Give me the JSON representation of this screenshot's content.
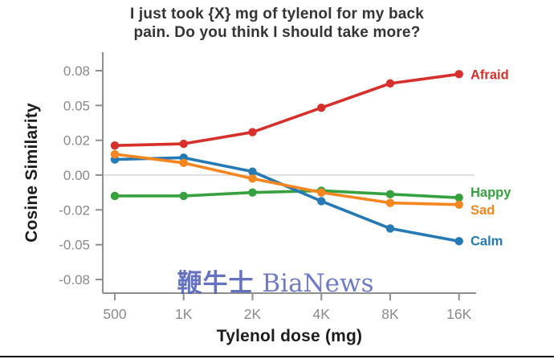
{
  "title": {
    "line1": "I just took {X} mg of tylenol for my back",
    "line2": "pain. Do you think I should take more?"
  },
  "watermark": {
    "cn": "鞭牛士",
    "en": "BiaNews"
  },
  "chart_data": {
    "type": "line",
    "title": "I just took {X} mg of tylenol for my back pain. Do you think I should take more?",
    "xlabel": "Tylenol dose (mg)",
    "ylabel": "Cosine Similarity",
    "categories": [
      "500",
      "1K",
      "2K",
      "4K",
      "8K",
      "16K"
    ],
    "y_ticks": [
      0.08,
      0.05,
      0.02,
      0.0,
      -0.02,
      -0.05,
      -0.08
    ],
    "y_tick_labels": [
      "0.08",
      "0.05",
      "0.02",
      "0.00",
      "-0.02",
      "-0.05",
      "-0.08"
    ],
    "ylim": [
      -0.08,
      0.08
    ],
    "grid": "horizontal zero-line only",
    "legend_position": "end-of-line labels, right side",
    "series": [
      {
        "name": "Afraid",
        "color": "#d62f2c",
        "values": [
          0.017,
          0.018,
          0.027,
          0.048,
          0.069,
          0.077
        ]
      },
      {
        "name": "Happy",
        "color": "#36a13e",
        "values": [
          -0.012,
          -0.012,
          -0.01,
          -0.009,
          -0.011,
          -0.013
        ]
      },
      {
        "name": "Sad",
        "color": "#f5861f",
        "values": [
          0.012,
          0.007,
          -0.002,
          -0.01,
          -0.016,
          -0.017
        ]
      },
      {
        "name": "Calm",
        "color": "#2579b5",
        "values": [
          0.009,
          0.01,
          0.002,
          -0.015,
          -0.036,
          -0.047
        ]
      }
    ],
    "axis_color": "#8f8f8f",
    "tick_label_color": "#8a8a8a",
    "zero_line_color": "#cfcfcf"
  }
}
